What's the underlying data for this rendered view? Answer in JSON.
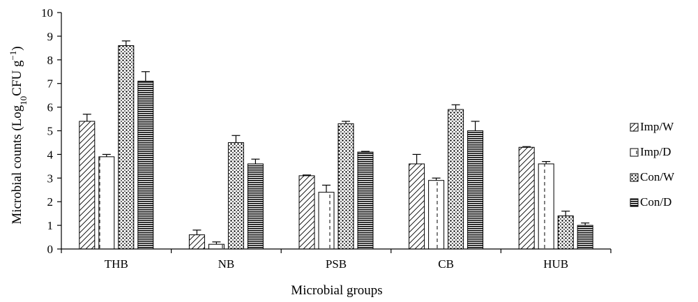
{
  "chart_data": {
    "type": "bar",
    "categories": [
      "THB",
      "NB",
      "PSB",
      "CB",
      "HUB"
    ],
    "series": [
      {
        "name": "Imp/W",
        "values": [
          5.4,
          0.6,
          3.1,
          3.6,
          4.3
        ],
        "errors": [
          0.3,
          0.2,
          0.03,
          0.4,
          0.03
        ],
        "pattern": "diagonal-hatch"
      },
      {
        "name": "Imp/D",
        "values": [
          3.9,
          0.2,
          2.4,
          2.9,
          3.6
        ],
        "errors": [
          0.1,
          0.1,
          0.3,
          0.1,
          0.1
        ],
        "pattern": "dashed-vertical"
      },
      {
        "name": "Con/W",
        "values": [
          8.6,
          4.5,
          5.3,
          5.9,
          1.4
        ],
        "errors": [
          0.2,
          0.3,
          0.1,
          0.2,
          0.2
        ],
        "pattern": "dots"
      },
      {
        "name": "Con/D",
        "values": [
          7.1,
          3.6,
          4.1,
          5.0,
          1.0
        ],
        "errors": [
          0.4,
          0.2,
          0.03,
          0.4,
          0.1
        ],
        "pattern": "horizontal-stripes"
      }
    ],
    "xlabel": "Microbial groups",
    "ylabel": {
      "prefix": "Microbial counts (Log",
      "subscript": "10",
      "middle": "CFU g",
      "superscript": "−1",
      "suffix": ")"
    },
    "ylim": [
      0,
      10
    ],
    "yticks": [
      "0",
      "1",
      "2",
      "3",
      "4",
      "5",
      "6",
      "7",
      "8",
      "9",
      "10"
    ],
    "grid": false,
    "legend_position": "right"
  }
}
